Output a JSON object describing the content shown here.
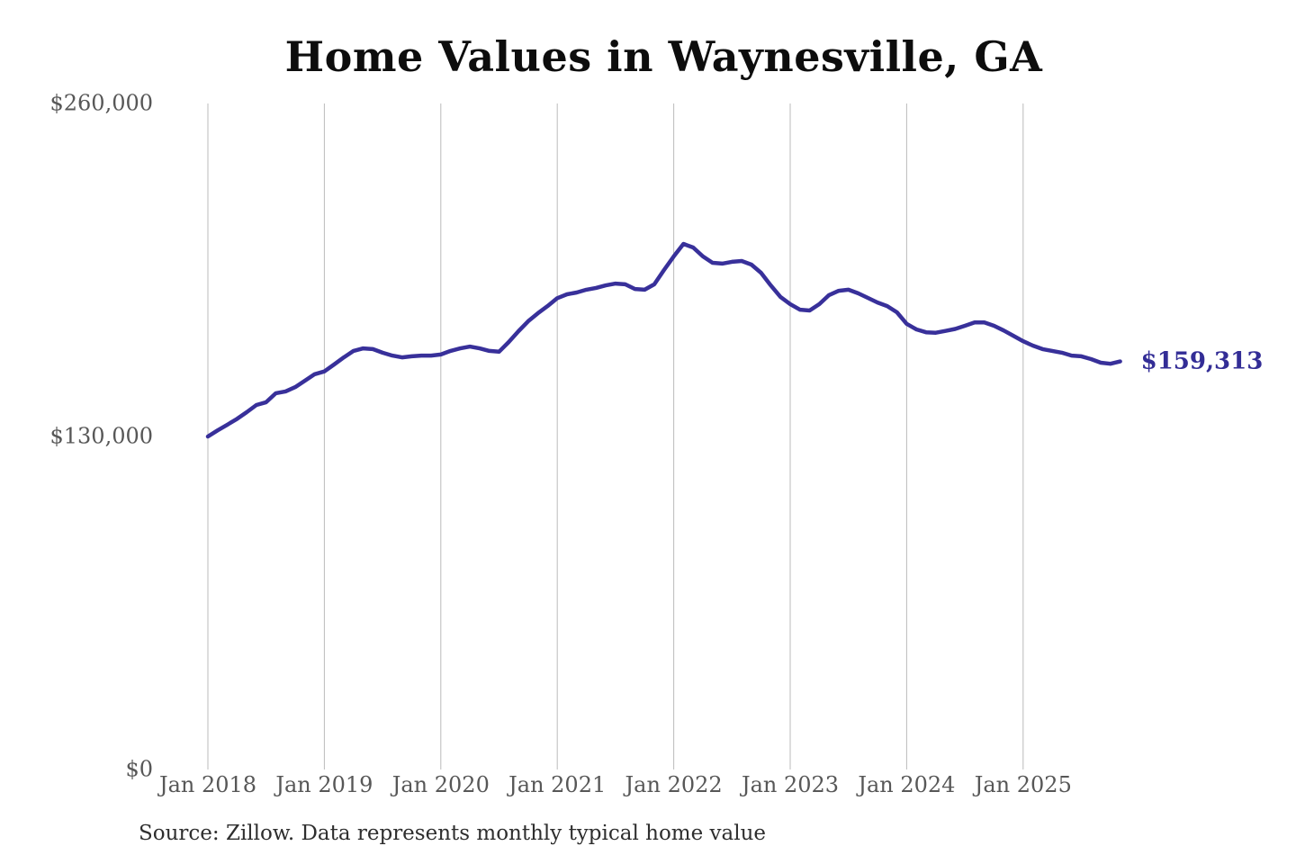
{
  "title": "Home Values in Waynesville, GA",
  "source_note": "Source: Zillow. Data represents monthly typical home value",
  "colors": {
    "line": "#38309a",
    "grid": "#bbbbbb",
    "axis_text": "#575757",
    "title_text": "#0d0d0d",
    "end_label_text": "#332d96",
    "background": "#ffffff"
  },
  "chart_data": {
    "type": "line",
    "title": "Home Values in Waynesville, GA",
    "series_name": "Monthly typical home value",
    "start_month": "2018-01",
    "end_month": "2025-11",
    "frequency": "monthly",
    "x_tick_labels": [
      "Jan 2018",
      "Jan 2019",
      "Jan 2020",
      "Jan 2021",
      "Jan 2022",
      "Jan 2023",
      "Jan 2024",
      "Jan 2025"
    ],
    "y_ticks": [
      0,
      130000,
      260000
    ],
    "y_tick_labels": [
      "$0",
      "$130,000",
      "$260,000"
    ],
    "ylim": [
      0,
      260000
    ],
    "grid": "vertical-only",
    "legend": "none",
    "end_label": "$159,313",
    "final_value": 159313,
    "values": [
      130000,
      132400,
      134600,
      136900,
      139500,
      142300,
      143400,
      146900,
      147600,
      149300,
      151800,
      154300,
      155400,
      158100,
      160900,
      163400,
      164400,
      164100,
      162700,
      161600,
      160900,
      161300,
      161600,
      161600,
      162000,
      163400,
      164400,
      165100,
      164400,
      163400,
      163100,
      166900,
      171100,
      175000,
      178100,
      180900,
      184000,
      185500,
      186200,
      187300,
      188000,
      189000,
      189700,
      189400,
      187600,
      187300,
      189400,
      195000,
      200300,
      205200,
      203800,
      200300,
      197800,
      197500,
      198200,
      198500,
      197100,
      193900,
      189000,
      184500,
      181700,
      179500,
      179200,
      181700,
      185200,
      186900,
      187300,
      185900,
      184100,
      182300,
      180900,
      178500,
      174000,
      171800,
      170700,
      170500,
      171200,
      172000,
      173200,
      174500,
      174500,
      173200,
      171400,
      169300,
      167200,
      165500,
      164100,
      163400,
      162700,
      161600,
      161300,
      160200,
      158800,
      158400,
      159313
    ]
  }
}
